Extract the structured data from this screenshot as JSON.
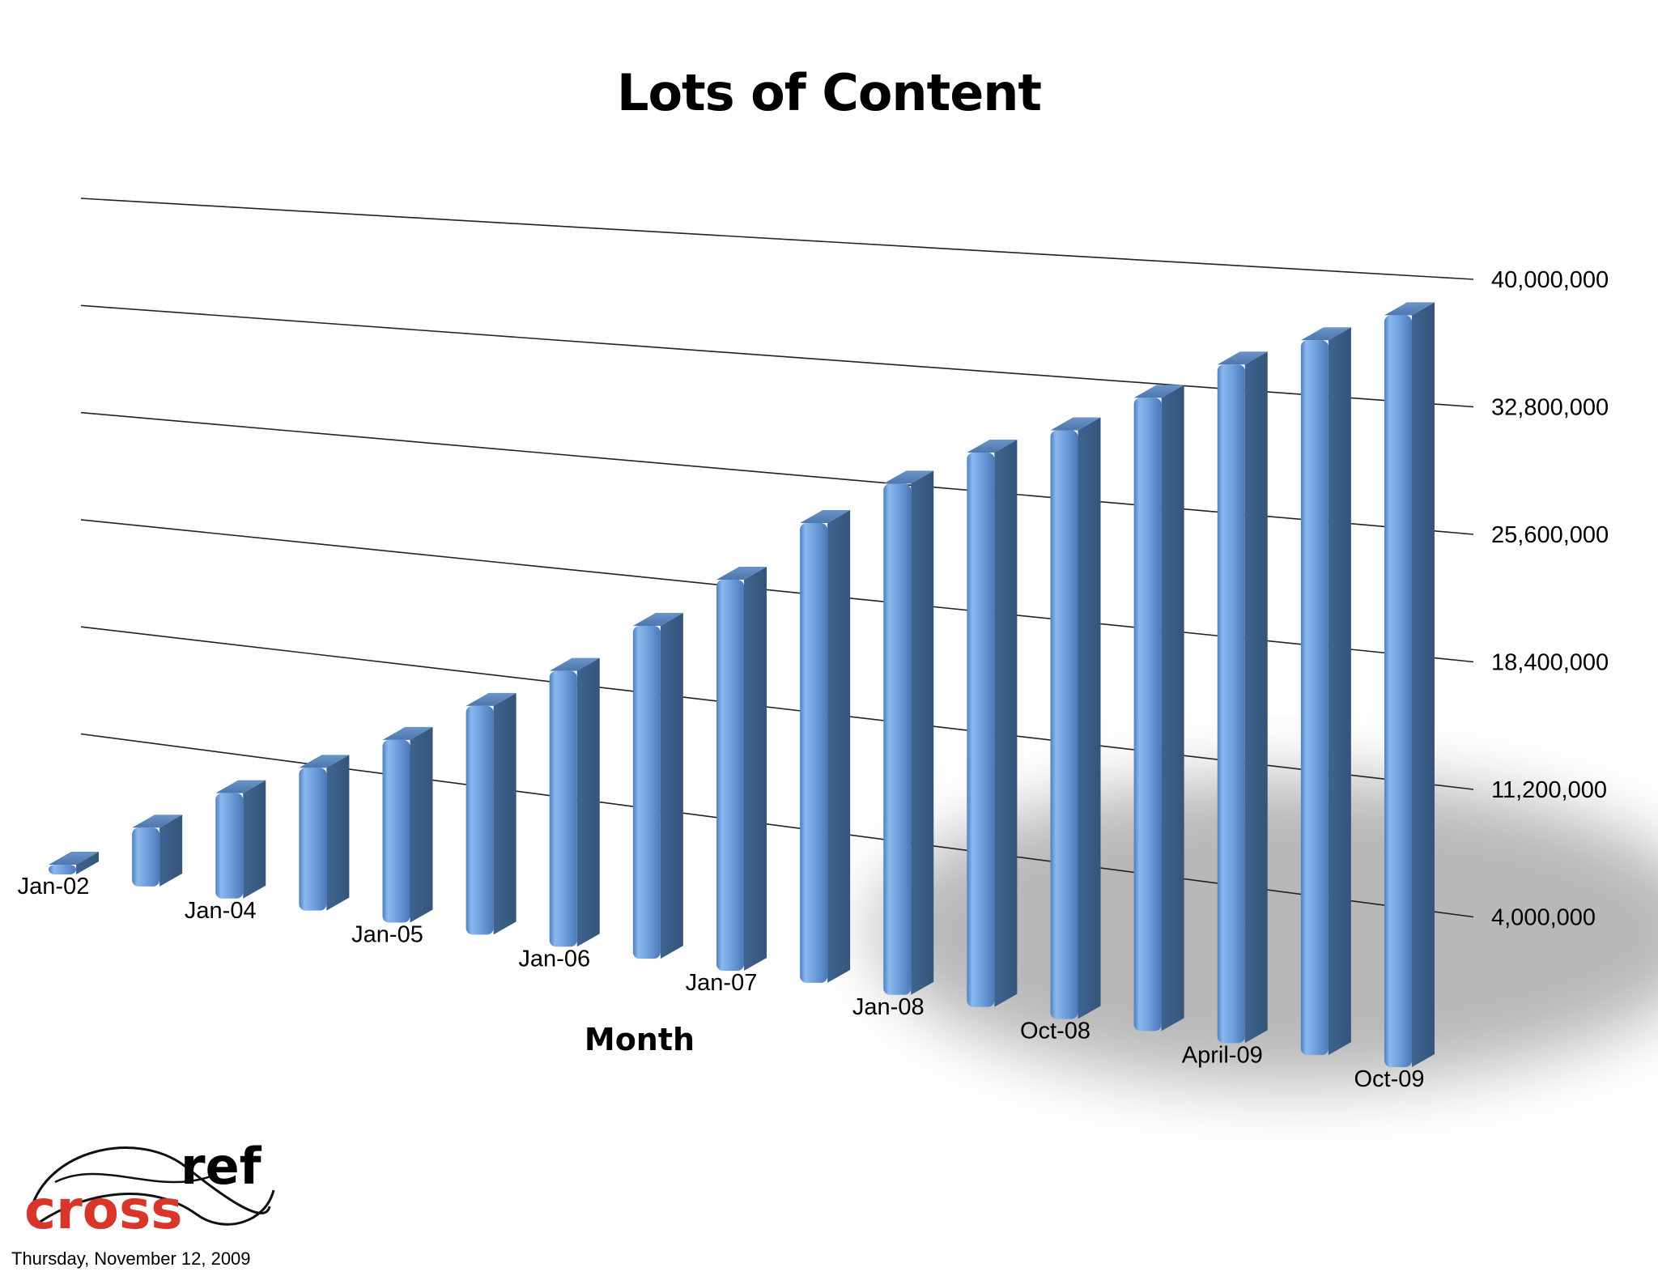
{
  "chart_data": {
    "type": "bar",
    "title": "Lots of Content",
    "xlabel": "Month",
    "ylabel": "",
    "ylim": [
      0,
      40000000
    ],
    "yticks": [
      4000000,
      11200000,
      18400000,
      25600000,
      32800000,
      40000000
    ],
    "ytick_labels": [
      "4,000,000",
      "11,200,000",
      "18,400,000",
      "25,600,000",
      "32,800,000",
      "40,000,000"
    ],
    "categories": [
      "Jan-02",
      "",
      "Jan-04",
      "",
      "Jan-05",
      "",
      "Jan-06",
      "",
      "Jan-07",
      "",
      "Jan-08",
      "",
      "Oct-08",
      "",
      "April-09",
      "",
      "Oct-09"
    ],
    "values": [
      500000,
      3500000,
      6200000,
      8300000,
      10500000,
      13000000,
      15500000,
      18500000,
      21500000,
      25000000,
      27500000,
      29500000,
      31000000,
      33000000,
      35000000,
      36500000,
      38000000
    ],
    "style": "3d-bar",
    "grid": true,
    "bar_color": "#6e9fd9"
  },
  "footer": {
    "logo_text_cross": "cross",
    "logo_text_ref": "ref",
    "date": "Thursday, November 12, 2009"
  }
}
